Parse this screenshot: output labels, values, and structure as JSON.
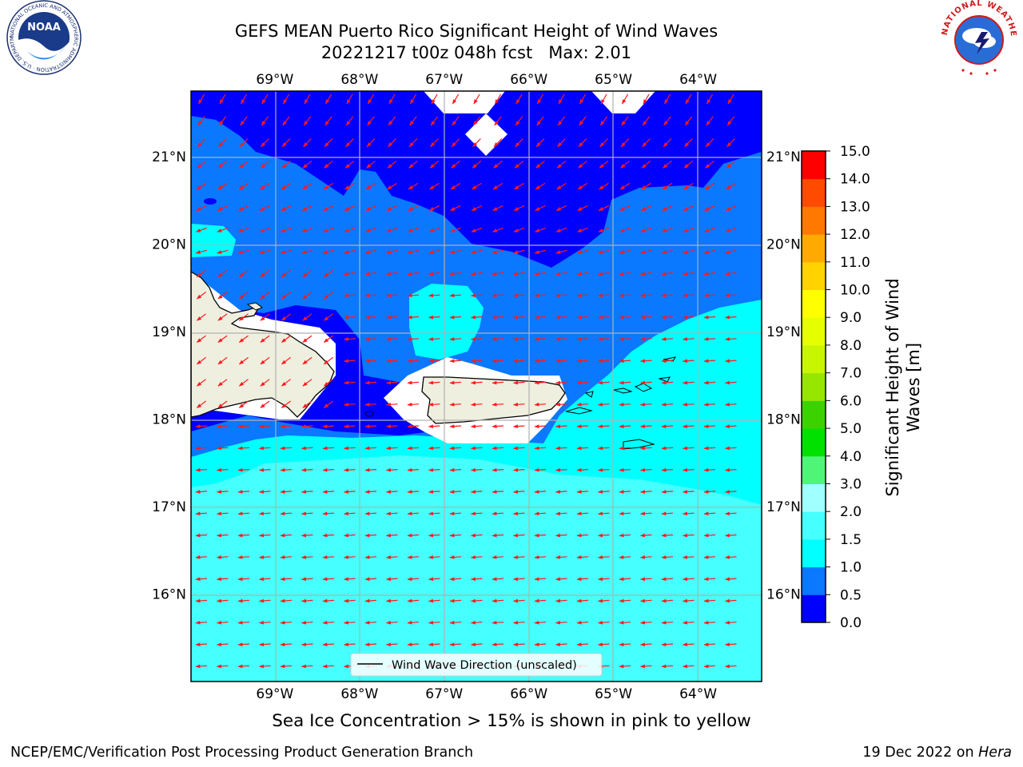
{
  "title": {
    "line1": "GEFS MEAN Puerto Rico Significant Height of Wind Waves",
    "line2": "20221217 t00z 048h fcst   Max: 2.01"
  },
  "map": {
    "lon_ticks": [
      "69°W",
      "68°W",
      "67°W",
      "66°W",
      "65°W",
      "64°W"
    ],
    "lon_values": [
      -69,
      -68,
      -67,
      -66,
      -65,
      -64
    ],
    "lat_ticks": [
      "16°N",
      "17°N",
      "18°N",
      "19°N",
      "20°N",
      "21°N"
    ],
    "lat_values": [
      16,
      17,
      18,
      19,
      20,
      21
    ],
    "lon_range": [
      -69.99,
      -63.25
    ],
    "lat_range": [
      15.0,
      21.75
    ],
    "grid": true,
    "vector_field": "wind wave direction arrows, red, mostly toward west",
    "legend_label": "Wind Wave Direction (unscaled)",
    "legend_placement": "bottom-center"
  },
  "colorbar": {
    "label_line1": "Significant Height of Wind",
    "label_line2": "Waves [m]",
    "ticks": [
      "0.0",
      "0.5",
      "1.0",
      "1.5",
      "2.0",
      "3.0",
      "4.0",
      "5.0",
      "6.0",
      "7.0",
      "8.0",
      "9.0",
      "10.0",
      "11.0",
      "12.0",
      "13.0",
      "14.0",
      "15.0"
    ],
    "colors": [
      "#0000ff",
      "#0a78ff",
      "#00ffff",
      "#46ffff",
      "#a0ffff",
      "#50f578",
      "#00e100",
      "#3cd200",
      "#96e600",
      "#c8f500",
      "#e6ff00",
      "#ffff00",
      "#ffd200",
      "#ffaa00",
      "#ff7800",
      "#ff4b00",
      "#ff0000"
    ]
  },
  "footer": {
    "sea_ice_note": "Sea Ice Concentration > 15% is shown in pink to yellow",
    "left": "NCEP/EMC/Verification Post Processing Product Generation Branch",
    "right_prefix": "19 Dec 2022 on ",
    "right_host": "Hera"
  },
  "logos": {
    "left": "NOAA",
    "left_ring": "NATIONAL OCEANIC AND ATMOSPHERIC ADMINISTRATION · U.S. DEPARTMENT OF COMMERCE",
    "right_ring": "NATIONAL WEATHER SERVICE"
  }
}
